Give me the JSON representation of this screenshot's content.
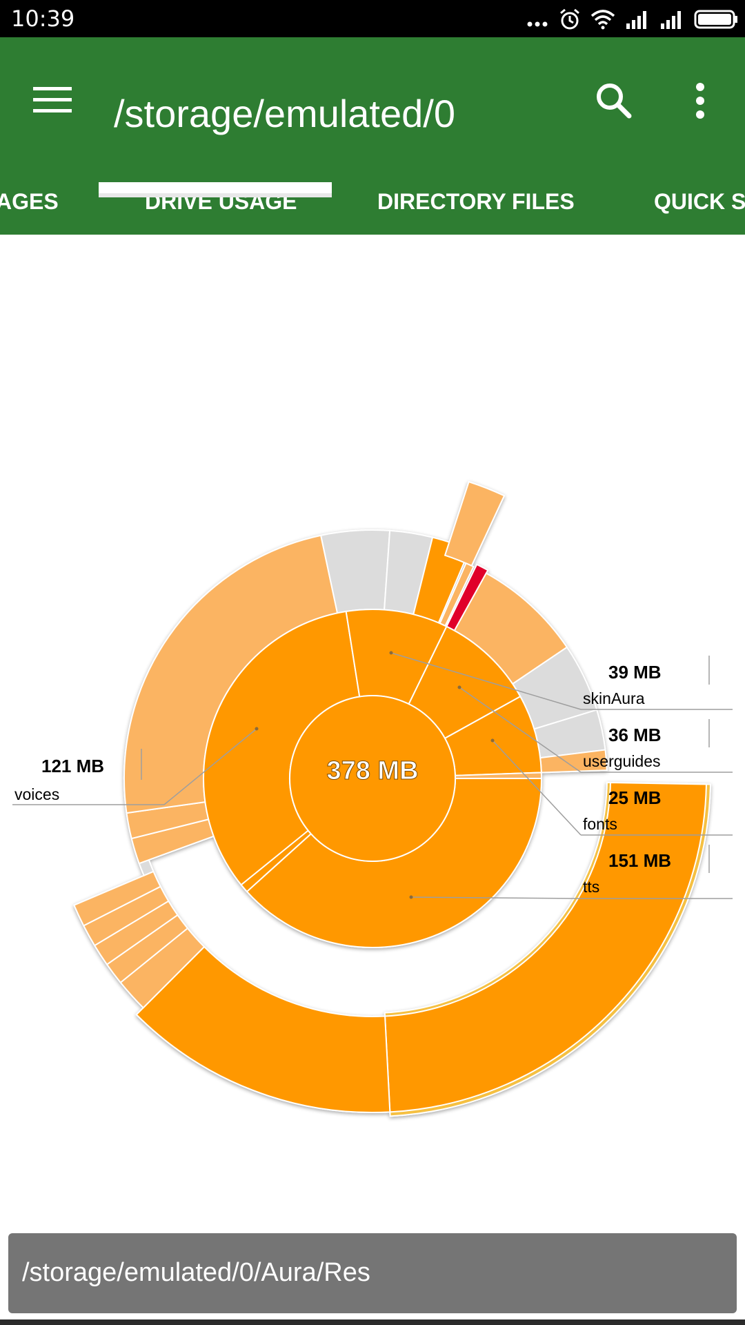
{
  "status_bar": {
    "time": "10:39",
    "icons": [
      "more-dots-icon",
      "alarm-icon",
      "wifi-icon",
      "signal-icon",
      "signal-icon",
      "battery-icon"
    ]
  },
  "app_bar": {
    "title": "/storage/emulated/0",
    "color": "#2e7d32",
    "menu_icon": "hamburger-menu-icon",
    "search_icon": "search-icon",
    "overflow_icon": "more-vert-icon"
  },
  "tabs": [
    {
      "label": "AGES",
      "selected": false
    },
    {
      "label": "DRIVE USAGE",
      "selected": true
    },
    {
      "label": "DIRECTORY FILES",
      "selected": false
    },
    {
      "label": "QUICK SI",
      "selected": false
    }
  ],
  "chart_data": {
    "type": "sunburst",
    "center_label": "378 MB",
    "total_mb": 378,
    "segments": [
      {
        "label": "voices",
        "size": "121 MB",
        "value": 121
      },
      {
        "label": "skinAura",
        "size": "39 MB",
        "value": 39
      },
      {
        "label": "userguides",
        "size": "36 MB",
        "value": 36
      },
      {
        "label": "fonts",
        "size": "25 MB",
        "value": 25
      },
      {
        "label": "tts",
        "size": "151 MB",
        "value": 151
      }
    ],
    "colors": {
      "primary": "#ff9800",
      "light": "#fbb462",
      "gray": "#dcdcdc",
      "highlight": "#e0002a",
      "outline": "#f5c042"
    }
  },
  "path_bar": {
    "path": "/storage/emulated/0/Aura/Res"
  }
}
